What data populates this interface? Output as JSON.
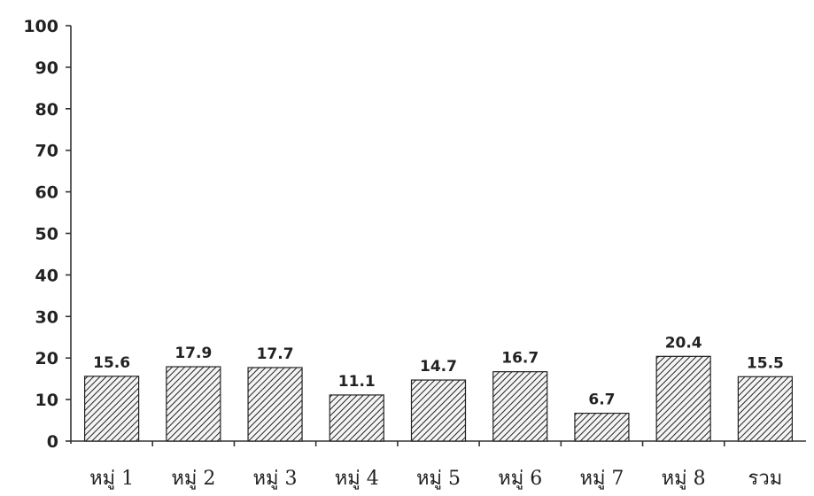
{
  "chart_data": {
    "type": "bar",
    "title": "",
    "xlabel": "",
    "ylabel": "",
    "categories": [
      "หมู่ 1",
      "หมู่ 2",
      "หมู่ 3",
      "หมู่ 4",
      "หมู่ 5",
      "หมู่ 6",
      "หมู่ 7",
      "หมู่ 8",
      "รวม"
    ],
    "values": [
      15.6,
      17.9,
      17.7,
      11.1,
      14.7,
      16.7,
      6.7,
      20.4,
      15.5
    ],
    "value_labels": [
      "15.6",
      "17.9",
      "17.7",
      "11.1",
      "14.7",
      "16.7",
      "6.7",
      "20.4",
      "15.5"
    ],
    "ylim": [
      0,
      100
    ],
    "yticks": [
      "0",
      "10",
      "20",
      "30",
      "40",
      "50",
      "60",
      "70",
      "80",
      "90",
      "100"
    ],
    "grid": false,
    "legend": "none",
    "bar_fill": "diagonal-hatch",
    "colors": {
      "bar_line": "#222222",
      "background": "#ffffff"
    }
  }
}
